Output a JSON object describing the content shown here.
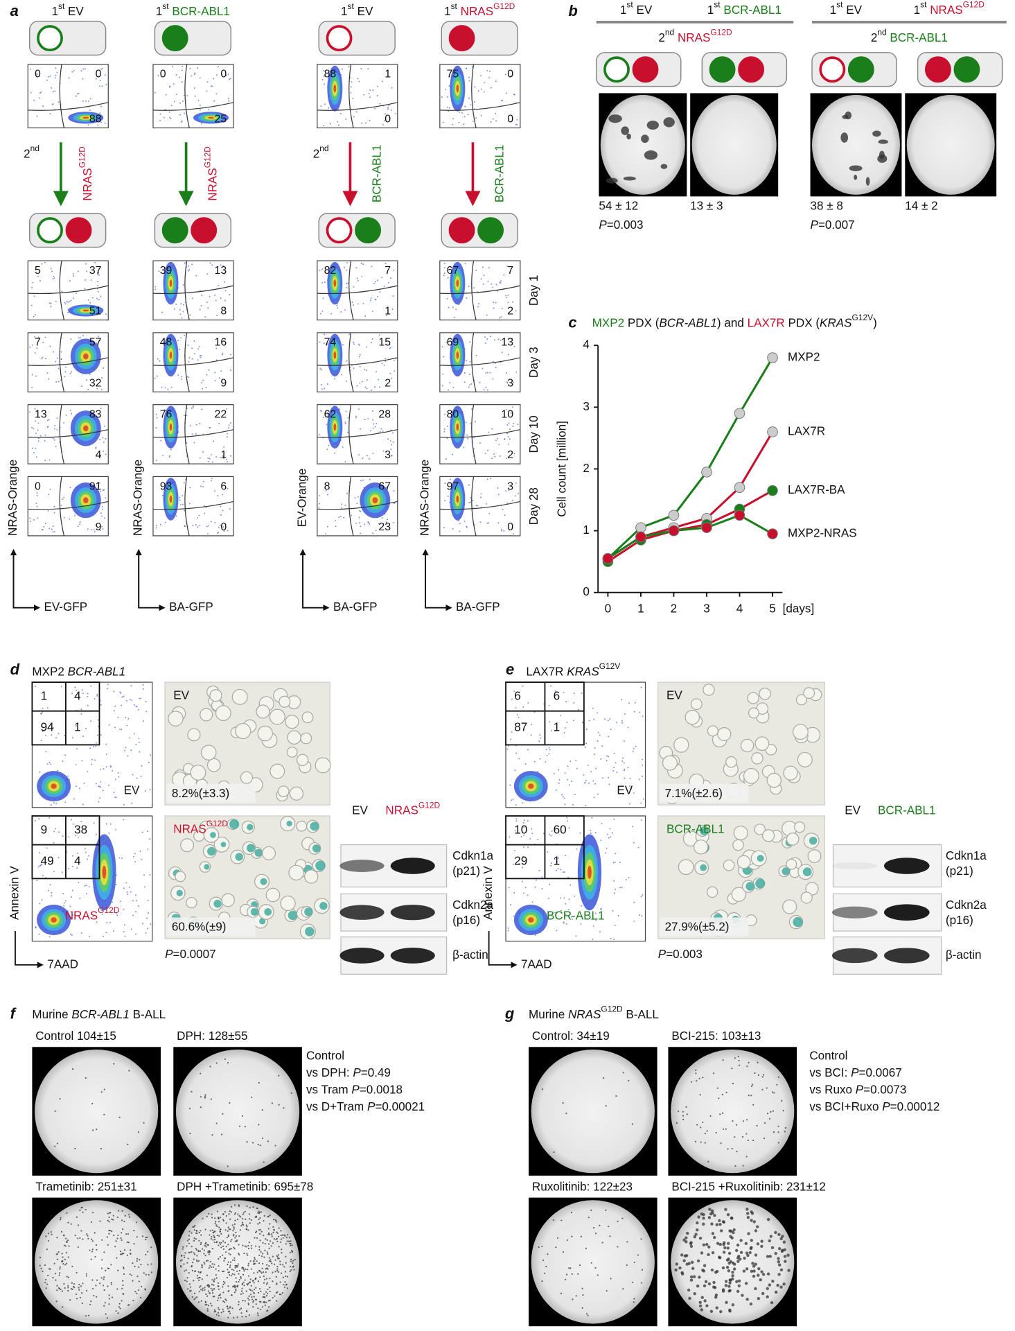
{
  "panel_letters": [
    "a",
    "b",
    "c",
    "d",
    "e",
    "f",
    "g"
  ],
  "a": {
    "columns": [
      {
        "header": [
          {
            "text": "1"
          },
          {
            "text": "st",
            "sup": true
          },
          {
            "text": " EV"
          }
        ],
        "first": [
          0,
          0,
          88
        ],
        "second": [
          {
            "text": "2"
          },
          {
            "text": "nd",
            "sup": true
          }
        ],
        "arrow_label": [
          {
            "text": "NRAS",
            "color": "#c8102e"
          },
          {
            "text": "G12D",
            "sup": true,
            "color": "#c8102e"
          }
        ],
        "days": [
          [
            5,
            37,
            51
          ],
          [
            7,
            57,
            32
          ],
          [
            13,
            83,
            4
          ],
          [
            0,
            91,
            9
          ]
        ],
        "y_label": "NRAS-Orange",
        "x_label": "EV-GFP"
      },
      {
        "header": [
          {
            "text": "1"
          },
          {
            "text": "st",
            "sup": true
          },
          {
            "text": " BCR-ABL1",
            "color": "#1a7f1a"
          }
        ],
        "first": [
          0,
          0,
          25
        ],
        "arrow_label": [
          {
            "text": "NRAS",
            "color": "#c8102e"
          },
          {
            "text": "G12D",
            "sup": true,
            "color": "#c8102e"
          }
        ],
        "days": [
          [
            39,
            13,
            8
          ],
          [
            48,
            16,
            9
          ],
          [
            76,
            22,
            1
          ],
          [
            93,
            6,
            0
          ]
        ],
        "y_label": "NRAS-Orange",
        "x_label": "BA-GFP"
      },
      {
        "header": [
          {
            "text": "1"
          },
          {
            "text": "st",
            "sup": true
          },
          {
            "text": " EV"
          }
        ],
        "first": [
          88,
          1,
          0
        ],
        "second": [
          {
            "text": "2"
          },
          {
            "text": "nd",
            "sup": true
          }
        ],
        "arrow_label": [
          {
            "text": "BCR-ABL1",
            "color": "#1a7f1a"
          }
        ],
        "days": [
          [
            82,
            7,
            1
          ],
          [
            74,
            15,
            2
          ],
          [
            62,
            28,
            3
          ],
          [
            8,
            67,
            23
          ]
        ],
        "y_label": "EV-Orange",
        "x_label": "BA-GFP"
      },
      {
        "header": [
          {
            "text": "1"
          },
          {
            "text": "st",
            "sup": true
          },
          {
            "text": " NRAS",
            "color": "#c8102e"
          },
          {
            "text": "G12D",
            "sup": true,
            "color": "#c8102e"
          }
        ],
        "first": [
          75,
          0,
          0
        ],
        "arrow_label": [
          {
            "text": "BCR-ABL1",
            "color": "#1a7f1a"
          }
        ],
        "days": [
          [
            67,
            7,
            2
          ],
          [
            69,
            13,
            3
          ],
          [
            80,
            10,
            2
          ],
          [
            97,
            3,
            0
          ]
        ],
        "y_label": "NRAS-Orange",
        "x_label": "BA-GFP"
      }
    ],
    "day_labels": [
      "Day 1",
      "Day 3",
      "Day 10",
      "Day 28"
    ]
  },
  "b": {
    "groups": [
      {
        "firsts": [
          [
            {
              "text": "1"
            },
            {
              "text": "st",
              "sup": true
            },
            {
              "text": " EV"
            }
          ],
          [
            {
              "text": "1"
            },
            {
              "text": "st",
              "sup": true
            },
            {
              "text": " BCR-ABL1",
              "color": "#1a7f1a"
            }
          ]
        ],
        "second": [
          {
            "text": "2"
          },
          {
            "text": "nd",
            "sup": true
          },
          {
            "text": " NRAS",
            "color": "#c8102e"
          },
          {
            "text": "G12D",
            "sup": true,
            "color": "#c8102e"
          }
        ],
        "counts": [
          "54 ± 12",
          "13 ± 3"
        ],
        "p": [
          {
            "text": "P",
            "i": true
          },
          {
            "text": "=0.003"
          }
        ]
      },
      {
        "firsts": [
          [
            {
              "text": "1"
            },
            {
              "text": "st",
              "sup": true
            },
            {
              "text": " EV"
            }
          ],
          [
            {
              "text": "1"
            },
            {
              "text": "st",
              "sup": true
            },
            {
              "text": " NRAS",
              "color": "#c8102e"
            },
            {
              "text": "G12D",
              "sup": true,
              "color": "#c8102e"
            }
          ]
        ],
        "second": [
          {
            "text": "2"
          },
          {
            "text": "nd",
            "sup": true
          },
          {
            "text": " BCR-ABL1",
            "color": "#1a7f1a"
          }
        ],
        "counts": [
          "38 ± 8",
          "14 ± 2"
        ],
        "p": [
          {
            "text": "P",
            "i": true
          },
          {
            "text": "=0.007"
          }
        ]
      }
    ]
  },
  "chart_data": {
    "type": "line",
    "title": [
      {
        "text": "MXP2",
        "color": "#1a7f1a"
      },
      {
        "text": " PDX ("
      },
      {
        "text": "BCR-ABL1",
        "i": true
      },
      {
        "text": ") and "
      },
      {
        "text": "LAX7R",
        "color": "#c8102e"
      },
      {
        "text": " PDX ("
      },
      {
        "text": "KRAS",
        "i": true
      },
      {
        "text": "G12V",
        "sup": true
      },
      {
        "text": ")"
      }
    ],
    "x": [
      0,
      1,
      2,
      3,
      4,
      5
    ],
    "series": [
      {
        "name": "MXP2",
        "color": "#1a7f1a",
        "dot_color": "#cccccc",
        "values": [
          0.55,
          1.05,
          1.25,
          1.95,
          2.9,
          3.8
        ]
      },
      {
        "name": "LAX7R",
        "color": "#c8102e",
        "dot_color": "#cccccc",
        "values": [
          0.55,
          0.9,
          1.05,
          1.2,
          1.7,
          2.6
        ]
      },
      {
        "name": "LAX7R-BA",
        "color": "#c8102e",
        "dot_color": "#1a7f1a",
        "values": [
          0.5,
          0.85,
          1.0,
          1.1,
          1.35,
          1.65
        ]
      },
      {
        "name": "MXP2-NRAS",
        "color": "#1a7f1a",
        "dot_color": "#c8102e",
        "values": [
          0.55,
          0.9,
          1.0,
          1.05,
          1.25,
          0.95
        ]
      }
    ],
    "xlim": [
      -0.3,
      5.3
    ],
    "ylim": [
      0,
      4
    ],
    "xticks": [
      0,
      1,
      2,
      3,
      4,
      5
    ],
    "yticks": [
      0,
      1,
      2,
      3,
      4
    ],
    "y_label": "Cell count [million]",
    "x_label": "[days]"
  },
  "d": {
    "title": [
      {
        "text": "MXP2 "
      },
      {
        "text": "BCR-ABL1",
        "i": true
      }
    ],
    "flows": [
      {
        "numbers": [
          1,
          4,
          94,
          1
        ],
        "label": [
          {
            "text": "EV"
          }
        ]
      },
      {
        "numbers": [
          9,
          38,
          49,
          4
        ],
        "label": [
          {
            "text": "NRAS",
            "color": "#c8102e"
          },
          {
            "text": "G12D",
            "sup": true,
            "color": "#c8102e"
          }
        ]
      }
    ],
    "y_label": "Annexin V",
    "x_label": "7AAD",
    "images": [
      {
        "label": [
          {
            "text": "EV"
          }
        ],
        "value": "8.2%(±3.3)"
      },
      {
        "label": [
          {
            "text": "NRAS",
            "color": "#c8102e"
          },
          {
            "text": "G12D",
            "sup": true,
            "color": "#c8102e"
          }
        ],
        "value": "60.6%(±9)"
      }
    ],
    "p": [
      {
        "text": "P",
        "i": true
      },
      {
        "text": "=0.0007"
      }
    ],
    "western": {
      "lanes": [
        [
          {
            "text": "EV"
          }
        ],
        [
          {
            "text": "NRAS",
            "color": "#c8102e"
          },
          {
            "text": "G12D",
            "sup": true,
            "color": "#c8102e"
          }
        ]
      ],
      "rows": [
        [
          "Cdkn1a",
          "(p21)"
        ],
        [
          "Cdkn2a",
          "(p16)"
        ],
        [
          "β-actin"
        ]
      ]
    }
  },
  "e": {
    "title": [
      {
        "text": "LAX7R "
      },
      {
        "text": "KRAS",
        "i": true
      },
      {
        "text": "G12V",
        "sup": true
      }
    ],
    "flows": [
      {
        "numbers": [
          6,
          6,
          87,
          1
        ],
        "label": [
          {
            "text": "EV"
          }
        ]
      },
      {
        "numbers": [
          10,
          60,
          29,
          1
        ],
        "label": [
          {
            "text": "BCR-ABL1",
            "color": "#1a7f1a"
          }
        ]
      }
    ],
    "y_label": "Annexin V",
    "x_label": "7AAD",
    "images": [
      {
        "label": [
          {
            "text": "EV"
          }
        ],
        "value": "7.1%(±2.6)"
      },
      {
        "label": [
          {
            "text": "BCR-ABL1",
            "color": "#1a7f1a"
          }
        ],
        "value": "27.9%(±5.2)"
      }
    ],
    "p": [
      {
        "text": "P",
        "i": true
      },
      {
        "text": "=0.003"
      }
    ],
    "western": {
      "lanes": [
        [
          {
            "text": "EV"
          }
        ],
        [
          {
            "text": "BCR-ABL1",
            "color": "#1a7f1a"
          }
        ]
      ],
      "rows": [
        [
          "Cdkn1a",
          "(p21)"
        ],
        [
          "Cdkn2a",
          "(p16)"
        ],
        [
          "β-actin"
        ]
      ]
    }
  },
  "f": {
    "title": [
      {
        "text": "Murine "
      },
      {
        "text": "BCR-ABL1",
        "i": true
      },
      {
        "text": " B-ALL"
      }
    ],
    "wells": [
      "Control 104±15",
      "DPH: 128±55",
      "Trametinib: 251±31",
      "DPH +Trametinib: 695±78"
    ],
    "stats": [
      [
        {
          "text": "Control"
        }
      ],
      [
        {
          "text": "vs DPH: "
        },
        {
          "text": "P",
          "i": true
        },
        {
          "text": "=0.49"
        }
      ],
      [
        {
          "text": "vs Tram "
        },
        {
          "text": "P",
          "i": true
        },
        {
          "text": "=0.0018"
        }
      ],
      [
        {
          "text": "vs D+Tram "
        },
        {
          "text": "P",
          "i": true
        },
        {
          "text": "=0.00021"
        }
      ]
    ]
  },
  "g": {
    "title": [
      {
        "text": "Murine "
      },
      {
        "text": "NRAS",
        "i": true
      },
      {
        "text": "G12D",
        "sup": true
      },
      {
        "text": " B-ALL"
      }
    ],
    "wells": [
      "Control: 34±19",
      "BCI-215: 103±13",
      "Ruxolitinib: 122±23",
      "BCI-215 +Ruxolitinib: 231±12"
    ],
    "stats": [
      [
        {
          "text": "Control"
        }
      ],
      [
        {
          "text": "vs BCI: "
        },
        {
          "text": "P",
          "i": true
        },
        {
          "text": "=0.0067"
        }
      ],
      [
        {
          "text": "vs Ruxo "
        },
        {
          "text": "P",
          "i": true
        },
        {
          "text": "=0.0073"
        }
      ],
      [
        {
          "text": "vs BCI+Ruxo "
        },
        {
          "text": "P",
          "i": true
        },
        {
          "text": "=0.00012"
        }
      ]
    ]
  }
}
